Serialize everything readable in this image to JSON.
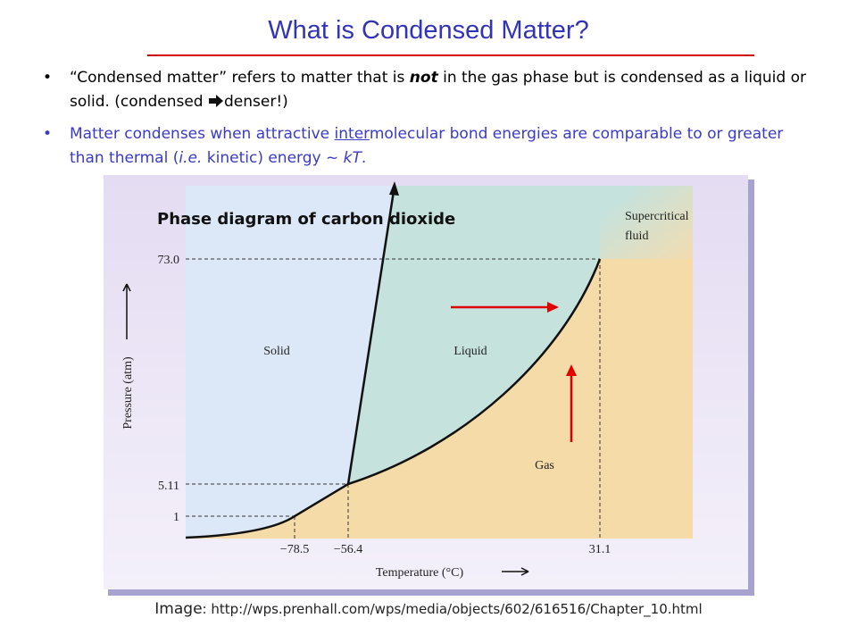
{
  "header": {
    "title": "What is Condensed Matter?"
  },
  "bullets": [
    {
      "parts": [
        "“Condensed matter” refers to matter that is ",
        "not",
        " in the gas phase but is condensed as a liquid or solid.  (condensed ",
        "denser!)"
      ]
    },
    {
      "parts": [
        "Matter condenses when attractive ",
        "inter",
        "molecular bond energies are comparable to or greater than thermal (",
        "i.e.",
        " kinetic) energy ~ ",
        "kT",
        "."
      ]
    }
  ],
  "figure": {
    "title": "Phase diagram of carbon dioxide",
    "regions": {
      "solid": "Solid",
      "liquid": "Liquid",
      "gas": "Gas",
      "supercritical": [
        "Supercritical",
        "fluid"
      ]
    },
    "x_label": "Temperature (°C)",
    "y_label": "Pressure (atm)",
    "x_ticks": [
      "−78.5",
      "−56.4",
      "31.1"
    ],
    "y_ticks": [
      "73.0",
      "5.11",
      "1"
    ]
  },
  "caption": {
    "label": "Image",
    "text": ": http://wps.prenhall.com/wps/media/objects/602/616516/Chapter_10.html"
  }
}
